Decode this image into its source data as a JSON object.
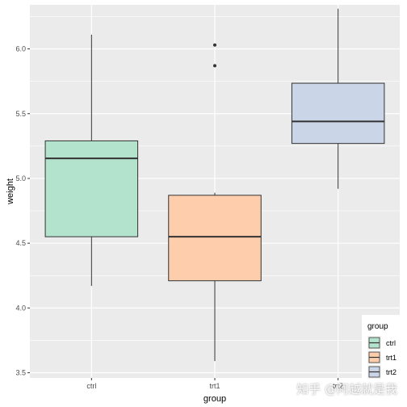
{
  "chart_data": {
    "type": "boxplot",
    "xlabel": "group",
    "ylabel": "weight",
    "categories": [
      "ctrl",
      "trt1",
      "trt2"
    ],
    "ylim": [
      3.46,
      6.34
    ],
    "yticks": [
      3.5,
      4.0,
      4.5,
      5.0,
      5.5,
      6.0
    ],
    "ytick_labels": [
      "3.5",
      "4.0",
      "4.5",
      "5.0",
      "5.5",
      "6.0"
    ],
    "grid": true,
    "boxes": [
      {
        "group": "ctrl",
        "min": 4.17,
        "q1": 4.55,
        "median": 5.155,
        "q3": 5.29,
        "max": 6.11,
        "outliers": [],
        "fill": "#b3e2cd"
      },
      {
        "group": "trt1",
        "min": 3.59,
        "q1": 4.21,
        "median": 4.55,
        "q3": 4.87,
        "max": 4.89,
        "outliers": [
          5.87,
          6.03
        ],
        "fill": "#fdcdac"
      },
      {
        "group": "trt2",
        "min": 4.92,
        "q1": 5.27,
        "median": 5.44,
        "q3": 5.735,
        "max": 6.31,
        "outliers": [],
        "fill": "#cbd5e8"
      }
    ],
    "legend": {
      "title": "group",
      "placement": "bottom-right",
      "entries": [
        "ctrl",
        "trt1",
        "trt2"
      ]
    },
    "panel_background": "#ebebeb",
    "grid_color": "#ffffff"
  },
  "watermark": "知乎 @阿越就是我"
}
